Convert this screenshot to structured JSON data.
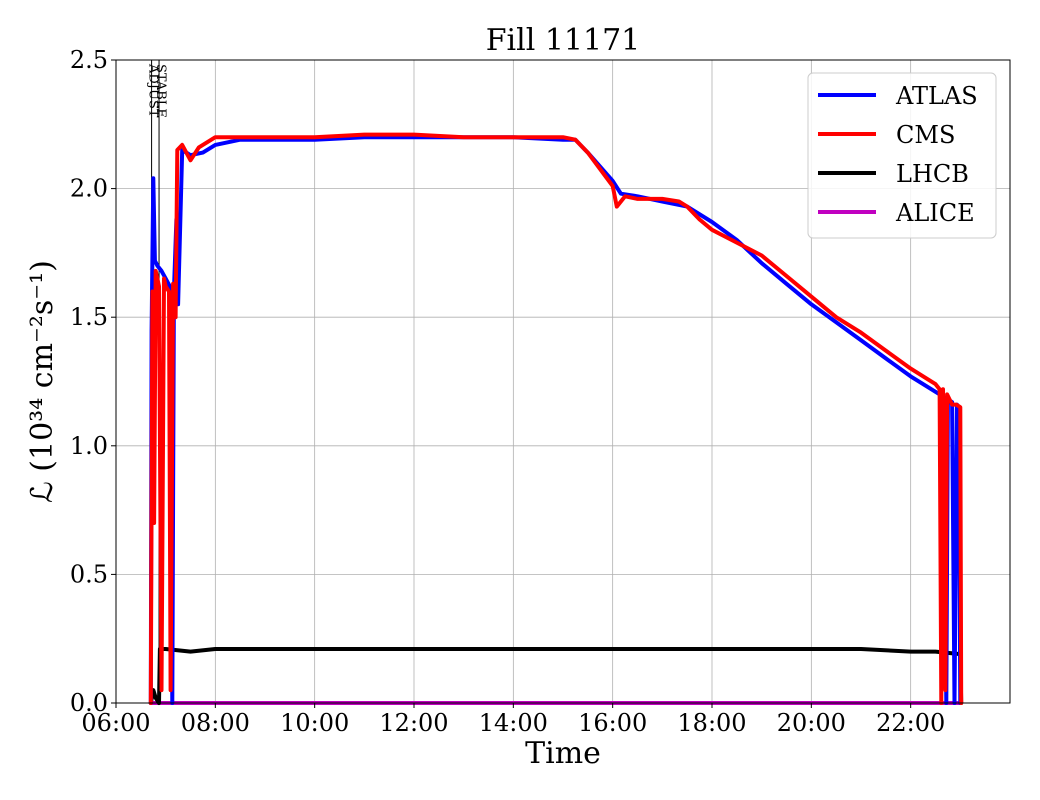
{
  "chart_data": {
    "type": "line",
    "title": "Fill 11171",
    "xlabel": "Time",
    "ylabel": "ℒ (10³⁴ cm⁻²s⁻¹)",
    "xlim": [
      "06:00",
      "24:00"
    ],
    "ylim": [
      0.0,
      2.5
    ],
    "x_ticks": [
      "06:00",
      "08:00",
      "10:00",
      "12:00",
      "14:00",
      "16:00",
      "18:00",
      "20:00",
      "22:00"
    ],
    "y_ticks": [
      "0.0",
      "0.5",
      "1.0",
      "1.5",
      "2.0",
      "2.5"
    ],
    "grid": true,
    "legend_position": "top-right",
    "markers": [
      {
        "label": "ADJUST",
        "x": "06:43"
      },
      {
        "label": "STABLE",
        "x": "06:52"
      }
    ],
    "series": [
      {
        "name": "ATLAS",
        "color": "#0000ff",
        "points": [
          [
            "06:42",
            0.0
          ],
          [
            "06:43",
            1.45
          ],
          [
            "06:45",
            2.04
          ],
          [
            "06:47",
            1.72
          ],
          [
            "06:50",
            1.7
          ],
          [
            "06:55",
            1.68
          ],
          [
            "07:00",
            1.65
          ],
          [
            "07:05",
            1.62
          ],
          [
            "07:08",
            0.0
          ],
          [
            "07:10",
            1.6
          ],
          [
            "07:13",
            1.88
          ],
          [
            "07:15",
            1.55
          ],
          [
            "07:20",
            2.15
          ],
          [
            "07:30",
            2.13
          ],
          [
            "07:45",
            2.14
          ],
          [
            "08:00",
            2.17
          ],
          [
            "08:30",
            2.19
          ],
          [
            "09:00",
            2.19
          ],
          [
            "10:00",
            2.19
          ],
          [
            "11:00",
            2.2
          ],
          [
            "12:00",
            2.2
          ],
          [
            "13:00",
            2.2
          ],
          [
            "14:00",
            2.2
          ],
          [
            "15:00",
            2.19
          ],
          [
            "15:15",
            2.19
          ],
          [
            "15:30",
            2.14
          ],
          [
            "16:00",
            2.03
          ],
          [
            "16:10",
            1.98
          ],
          [
            "16:30",
            1.97
          ],
          [
            "17:00",
            1.95
          ],
          [
            "17:30",
            1.93
          ],
          [
            "18:00",
            1.87
          ],
          [
            "18:30",
            1.8
          ],
          [
            "19:00",
            1.71
          ],
          [
            "19:30",
            1.63
          ],
          [
            "20:00",
            1.55
          ],
          [
            "20:30",
            1.48
          ],
          [
            "21:00",
            1.41
          ],
          [
            "21:30",
            1.34
          ],
          [
            "22:00",
            1.27
          ],
          [
            "22:30",
            1.21
          ],
          [
            "22:40",
            1.19
          ],
          [
            "22:43",
            0.0
          ],
          [
            "22:45",
            1.18
          ],
          [
            "22:50",
            1.17
          ],
          [
            "22:53",
            0.0
          ],
          [
            "22:56",
            1.16
          ],
          [
            "22:58",
            1.15
          ],
          [
            "23:00",
            0.0
          ]
        ]
      },
      {
        "name": "CMS",
        "color": "#ff0000",
        "points": [
          [
            "06:42",
            0.0
          ],
          [
            "06:44",
            1.6
          ],
          [
            "06:46",
            0.7
          ],
          [
            "06:48",
            1.68
          ],
          [
            "06:52",
            1.62
          ],
          [
            "06:55",
            0.05
          ],
          [
            "06:58",
            1.65
          ],
          [
            "07:00",
            1.62
          ],
          [
            "07:04",
            1.6
          ],
          [
            "07:06",
            0.05
          ],
          [
            "07:09",
            1.63
          ],
          [
            "07:12",
            1.5
          ],
          [
            "07:14",
            2.15
          ],
          [
            "07:20",
            2.17
          ],
          [
            "07:30",
            2.11
          ],
          [
            "07:40",
            2.16
          ],
          [
            "08:00",
            2.2
          ],
          [
            "08:30",
            2.2
          ],
          [
            "09:00",
            2.2
          ],
          [
            "10:00",
            2.2
          ],
          [
            "11:00",
            2.21
          ],
          [
            "12:00",
            2.21
          ],
          [
            "13:00",
            2.2
          ],
          [
            "14:00",
            2.2
          ],
          [
            "15:00",
            2.2
          ],
          [
            "15:15",
            2.19
          ],
          [
            "15:30",
            2.14
          ],
          [
            "16:00",
            2.01
          ],
          [
            "16:05",
            1.93
          ],
          [
            "16:15",
            1.97
          ],
          [
            "16:30",
            1.96
          ],
          [
            "17:00",
            1.96
          ],
          [
            "17:20",
            1.95
          ],
          [
            "17:30",
            1.93
          ],
          [
            "17:45",
            1.88
          ],
          [
            "18:00",
            1.84
          ],
          [
            "18:30",
            1.79
          ],
          [
            "19:00",
            1.74
          ],
          [
            "19:30",
            1.66
          ],
          [
            "20:00",
            1.58
          ],
          [
            "20:30",
            1.5
          ],
          [
            "21:00",
            1.44
          ],
          [
            "21:30",
            1.37
          ],
          [
            "22:00",
            1.3
          ],
          [
            "22:30",
            1.24
          ],
          [
            "22:35",
            1.22
          ],
          [
            "22:37",
            0.0
          ],
          [
            "22:39",
            1.22
          ],
          [
            "22:42",
            0.05
          ],
          [
            "22:44",
            1.2
          ],
          [
            "22:47",
            1.18
          ],
          [
            "22:50",
            1.16
          ],
          [
            "22:55",
            1.16
          ],
          [
            "23:00",
            1.15
          ],
          [
            "23:01",
            0.0
          ]
        ]
      },
      {
        "name": "LHCB",
        "color": "#000000",
        "points": [
          [
            "06:42",
            0.0
          ],
          [
            "06:45",
            0.05
          ],
          [
            "06:48",
            0.02
          ],
          [
            "06:52",
            0.0
          ],
          [
            "06:53",
            0.21
          ],
          [
            "07:00",
            0.21
          ],
          [
            "07:30",
            0.2
          ],
          [
            "08:00",
            0.21
          ],
          [
            "09:00",
            0.21
          ],
          [
            "10:00",
            0.21
          ],
          [
            "11:00",
            0.21
          ],
          [
            "12:00",
            0.21
          ],
          [
            "13:00",
            0.21
          ],
          [
            "14:00",
            0.21
          ],
          [
            "15:00",
            0.21
          ],
          [
            "16:00",
            0.21
          ],
          [
            "17:00",
            0.21
          ],
          [
            "18:00",
            0.21
          ],
          [
            "19:00",
            0.21
          ],
          [
            "20:00",
            0.21
          ],
          [
            "21:00",
            0.21
          ],
          [
            "22:00",
            0.2
          ],
          [
            "22:30",
            0.2
          ],
          [
            "23:00",
            0.19
          ],
          [
            "23:01",
            0.0
          ]
        ]
      },
      {
        "name": "ALICE",
        "color": "#c000c0",
        "points": [
          [
            "06:42",
            0.0
          ],
          [
            "23:00",
            0.0
          ]
        ]
      }
    ]
  }
}
